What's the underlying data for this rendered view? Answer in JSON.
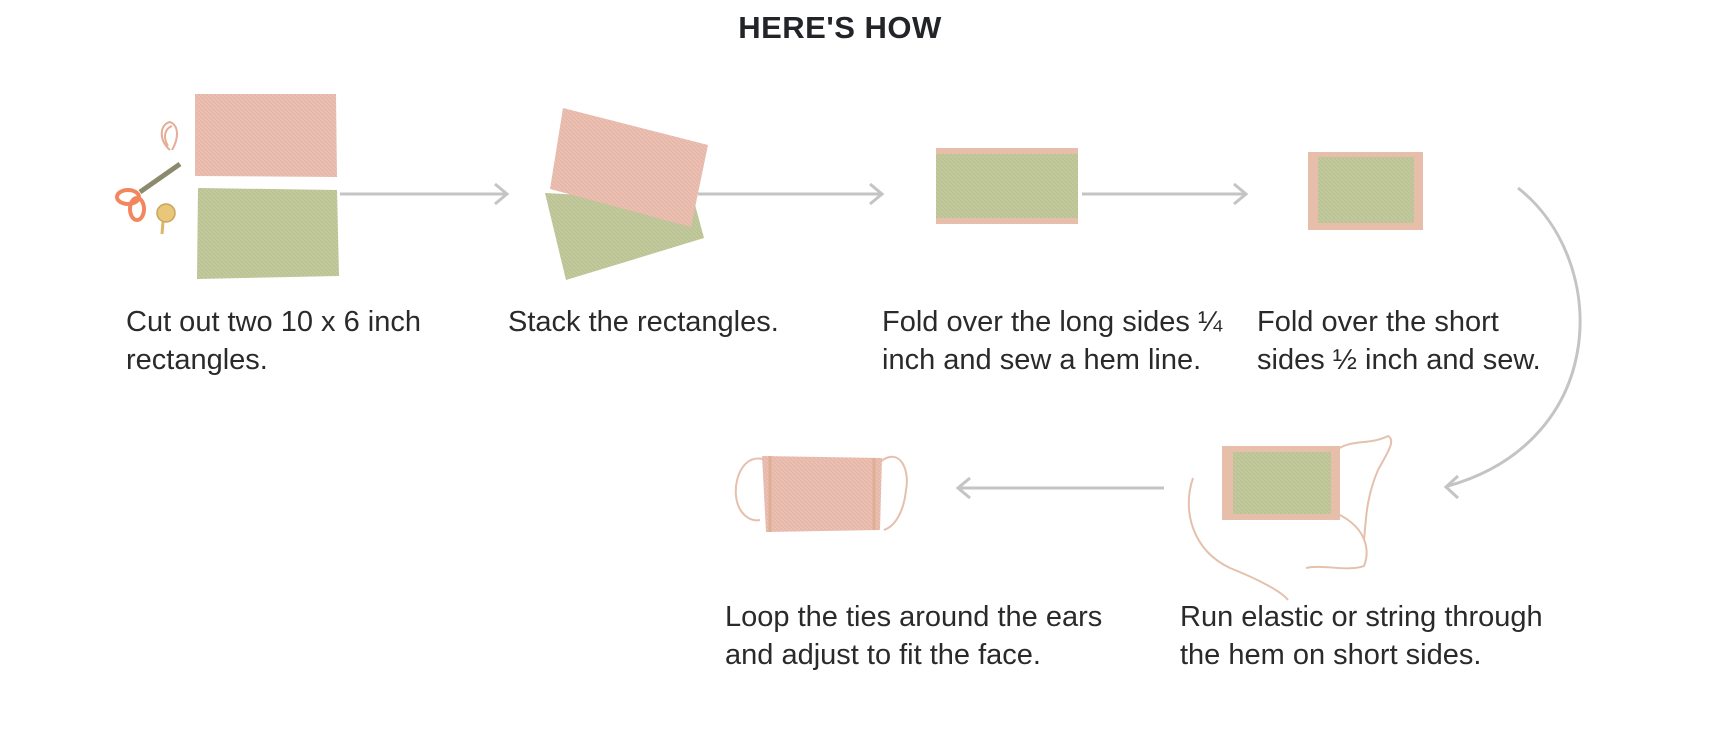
{
  "header": {
    "title": "HERE'S HOW"
  },
  "steps": [
    {
      "caption_line1": "Cut out two 10 x 6 inch",
      "caption_line2": "rectangles."
    },
    {
      "caption_line1": "Stack the rectangles.",
      "caption_line2": ""
    },
    {
      "caption_line1": "Fold over the long sides ¼",
      "caption_line2": "inch and sew a hem line."
    },
    {
      "caption_line1": "Fold over the short",
      "caption_line2": "sides ½ inch and sew."
    },
    {
      "caption_line1": "Run elastic or string through",
      "caption_line2": "the hem on short sides."
    },
    {
      "caption_line1": "Loop the ties around the ears",
      "caption_line2": "and adjust to fit the face."
    }
  ],
  "colors": {
    "pink_fabric": "#ecbfb0",
    "green_fabric": "#c2c99b",
    "arrow": "#c4c4c4",
    "scissors": "#f2875f",
    "text": "#2a2a2a"
  }
}
